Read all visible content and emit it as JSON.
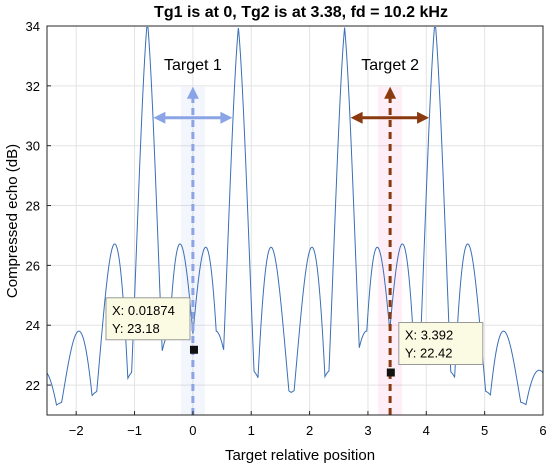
{
  "chart_data": {
    "type": "line",
    "title": "Tg1 is at 0, Tg2 is at 3.38, fd = 10.2 kHz",
    "xlabel": "Target relative position",
    "ylabel": "Compressed echo (dB)",
    "xlim": [
      -2.5,
      6
    ],
    "ylim": [
      21,
      34
    ],
    "grid": true,
    "xticks": [
      -2,
      -1,
      0,
      1,
      2,
      3,
      4,
      5,
      6
    ],
    "yticks": [
      22,
      24,
      26,
      28,
      30,
      32,
      34
    ],
    "line_color": "#3a6fb5",
    "peaks": [
      {
        "x": -0.78,
        "y": 33.3
      },
      {
        "x": 0.78,
        "y": 33.05
      },
      {
        "x": 2.6,
        "y": 33.05
      },
      {
        "x": 4.15,
        "y": 33.3
      }
    ],
    "annotations": [
      {
        "label": "Target 1",
        "x": 0.0,
        "y": 31.1,
        "marker_x": 0.0,
        "color": "#8aa4e6"
      },
      {
        "label": "Target 2",
        "x": 3.38,
        "y": 31.1,
        "marker_x": 3.38,
        "color": "#8a3a0e"
      }
    ],
    "datatips": [
      {
        "x_text": "X: 0.01874",
        "y_text": "Y: 23.18",
        "x": 0.01874,
        "y": 23.18
      },
      {
        "x_text": "X: 3.392",
        "y_text": "Y: 22.42",
        "x": 3.392,
        "y": 22.42
      }
    ]
  }
}
